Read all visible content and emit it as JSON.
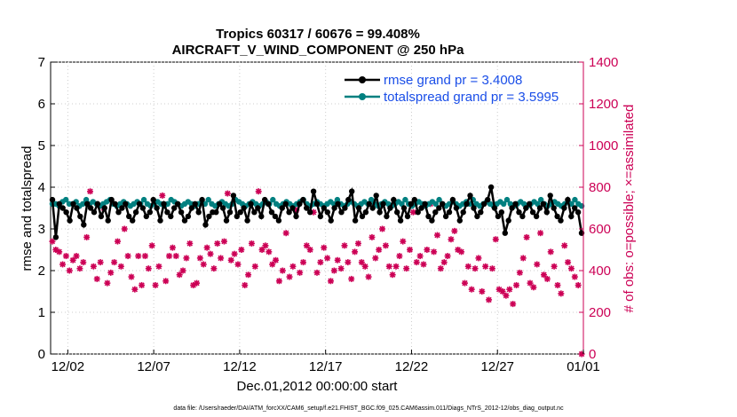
{
  "chart_data": {
    "type": "line",
    "title": "Tropics 60317 / 60676 = 99.408%",
    "subtitle": "AIRCRAFT_V_WIND_COMPONENT @ 250 hPa",
    "xlabel": "Dec.01,2012 00:00:00 start",
    "ylabel_left": "rmse and totalspread",
    "ylabel_right": "# of obs: o=possible; ×=assimilated",
    "ylim_left": [
      0,
      7
    ],
    "ylim_right": [
      0,
      1400
    ],
    "yticks_left": [
      "0",
      "1",
      "2",
      "3",
      "4",
      "5",
      "6",
      "7"
    ],
    "yticks_right": [
      "0",
      "200",
      "400",
      "600",
      "800",
      "1000",
      "1200",
      "1400"
    ],
    "xlim_days": [
      0,
      31
    ],
    "x_tick_labels": [
      "12/02",
      "12/07",
      "12/12",
      "12/17",
      "12/22",
      "12/27",
      "01/01"
    ],
    "x_tick_days": [
      1,
      6,
      11,
      16,
      21,
      26,
      31
    ],
    "legend": [
      {
        "label": "rmse grand pr = 3.4008",
        "color": "#000000"
      },
      {
        "label": "totalspread grand pr = 3.5995",
        "color": "#008080"
      }
    ],
    "colors": {
      "rmse": "#000000",
      "spread": "#008080",
      "obs": "#cc0055",
      "legend_text": "#1a4ee8"
    },
    "series": [
      {
        "name": "rmse",
        "values": [
          3.7,
          2.8,
          3.6,
          3.5,
          3.4,
          3.2,
          3.6,
          3.5,
          3.3,
          3.1,
          3.6,
          3.5,
          3.4,
          3.6,
          3.3,
          3.5,
          3.2,
          3.7,
          3.6,
          3.4,
          3.5,
          3.6,
          3.3,
          3.2,
          3.4,
          3.6,
          3.5,
          3.3,
          3.4,
          3.7,
          3.5,
          3.2,
          3.6,
          3.4,
          3.3,
          3.5,
          3.6,
          3.4,
          3.2,
          3.3,
          3.5,
          3.6,
          3.4,
          3.7,
          3.1,
          3.3,
          3.4,
          3.4,
          3.6,
          3.5,
          3.2,
          3.4,
          3.8,
          3.3,
          3.4,
          3.5,
          3.2,
          3.6,
          3.4,
          3.5,
          3.3,
          3.7,
          3.6,
          3.4,
          3.3,
          3.2,
          3.5,
          3.6,
          3.4,
          3.5,
          3.3,
          3.6,
          3.7,
          3.5,
          3.4,
          3.9,
          3.6,
          3.3,
          3.5,
          3.4,
          3.2,
          3.5,
          3.6,
          3.4,
          3.5,
          3.7,
          3.9,
          3.2,
          3.5,
          3.3,
          3.4,
          3.6,
          3.5,
          3.8,
          3.4,
          3.6,
          3.3,
          3.5,
          3.7,
          3.4,
          3.2,
          3.5,
          3.3,
          3.6,
          3.7,
          3.4,
          3.5,
          3.6,
          3.3,
          3.2,
          3.4,
          3.5,
          3.6,
          3.3,
          3.4,
          3.7,
          3.5,
          3.2,
          3.4,
          3.6,
          3.8,
          3.5,
          3.3,
          3.4,
          3.6,
          3.7,
          4.0,
          3.5,
          3.3,
          3.4,
          2.9,
          3.2,
          3.5,
          3.6,
          3.4,
          3.3,
          3.5,
          3.6,
          3.4,
          3.3,
          3.5,
          3.6,
          3.4,
          3.8,
          3.5,
          3.3,
          3.2,
          3.5,
          3.7,
          3.3,
          3.5,
          3.4,
          2.9
        ]
      },
      {
        "name": "totalspread",
        "values": [
          3.6,
          3.6,
          3.55,
          3.65,
          3.7,
          3.6,
          3.6,
          3.65,
          3.55,
          3.6,
          3.7,
          3.6,
          3.65,
          3.6,
          3.55,
          3.6,
          3.65,
          3.7,
          3.6,
          3.55,
          3.6,
          3.65,
          3.6,
          3.55,
          3.6,
          3.65,
          3.6,
          3.7,
          3.6,
          3.55,
          3.6,
          3.65,
          3.6,
          3.55,
          3.6,
          3.7,
          3.65,
          3.6,
          3.55,
          3.6,
          3.65,
          3.6,
          3.55,
          3.6,
          3.65,
          3.6,
          3.7,
          3.6,
          3.55,
          3.6,
          3.65,
          3.6,
          3.55,
          3.6,
          3.7,
          3.65,
          3.6,
          3.55,
          3.6,
          3.65,
          3.6,
          3.55,
          3.6,
          3.65,
          3.6,
          3.7,
          3.6,
          3.55,
          3.6,
          3.65,
          3.6,
          3.55,
          3.6,
          3.65,
          3.7,
          3.6,
          3.55,
          3.6,
          3.65,
          3.6,
          3.55,
          3.6,
          3.65,
          3.6,
          3.7,
          3.6,
          3.55,
          3.6,
          3.65,
          3.6,
          3.55,
          3.6,
          3.65,
          3.6,
          3.7,
          3.6,
          3.55,
          3.6,
          3.65,
          3.6,
          3.55,
          3.6,
          3.65,
          3.6,
          3.7,
          3.6,
          3.55,
          3.6,
          3.65,
          3.6,
          3.55,
          3.6,
          3.65,
          3.6,
          3.7,
          3.6,
          3.55,
          3.6,
          3.65,
          3.6,
          3.55,
          3.6,
          3.65,
          3.6,
          3.7,
          3.6,
          3.55,
          3.6,
          3.65,
          3.6,
          3.55,
          3.6,
          3.65,
          3.6,
          3.7,
          3.6,
          3.55,
          3.6,
          3.65,
          3.6,
          3.55,
          3.6,
          3.65,
          3.6,
          3.7,
          3.6,
          3.55,
          3.6,
          3.65,
          3.6,
          3.55,
          3.6,
          3.65,
          3.6,
          3.7,
          3.6,
          3.55
        ]
      },
      {
        "name": "obs_count",
        "values": [
          540,
          500,
          490,
          430,
          470,
          400,
          450,
          470,
          410,
          440,
          560,
          780,
          420,
          360,
          440,
          700,
          340,
          390,
          440,
          540,
          420,
          600,
          470,
          370,
          310,
          470,
          330,
          470,
          410,
          520,
          330,
          420,
          760,
          350,
          470,
          510,
          470,
          380,
          400,
          460,
          530,
          330,
          340,
          460,
          430,
          510,
          480,
          410,
          530,
          460,
          540,
          770,
          450,
          480,
          430,
          500,
          330,
          380,
          530,
          420,
          780,
          500,
          520,
          490,
          430,
          450,
          350,
          400,
          580,
          370,
          420,
          690,
          390,
          440,
          520,
          500,
          680,
          390,
          440,
          510,
          460,
          350,
          400,
          450,
          410,
          520,
          440,
          360,
          490,
          530,
          440,
          420,
          370,
          560,
          460,
          500,
          600,
          520,
          420,
          380,
          420,
          470,
          540,
          410,
          500,
          680,
          440,
          470,
          430,
          500,
          720,
          490,
          570,
          410,
          440,
          470,
          550,
          590,
          500,
          490,
          340,
          420,
          310,
          410,
          460,
          300,
          420,
          260,
          410,
          550,
          310,
          300,
          280,
          310,
          240,
          330,
          390,
          460,
          560,
          340,
          320,
          430,
          580,
          380,
          360,
          490,
          420,
          330,
          290,
          520,
          440,
          410,
          370,
          330,
          0
        ]
      }
    ]
  },
  "footnote": "data file: /Users/raeder/DAI/ATM_forcXX/CAM6_setup/f.e21.FHIST_BGC.f09_025.CAM6assim.011/Diags_NTrS_2012-12/obs_diag_output.nc"
}
